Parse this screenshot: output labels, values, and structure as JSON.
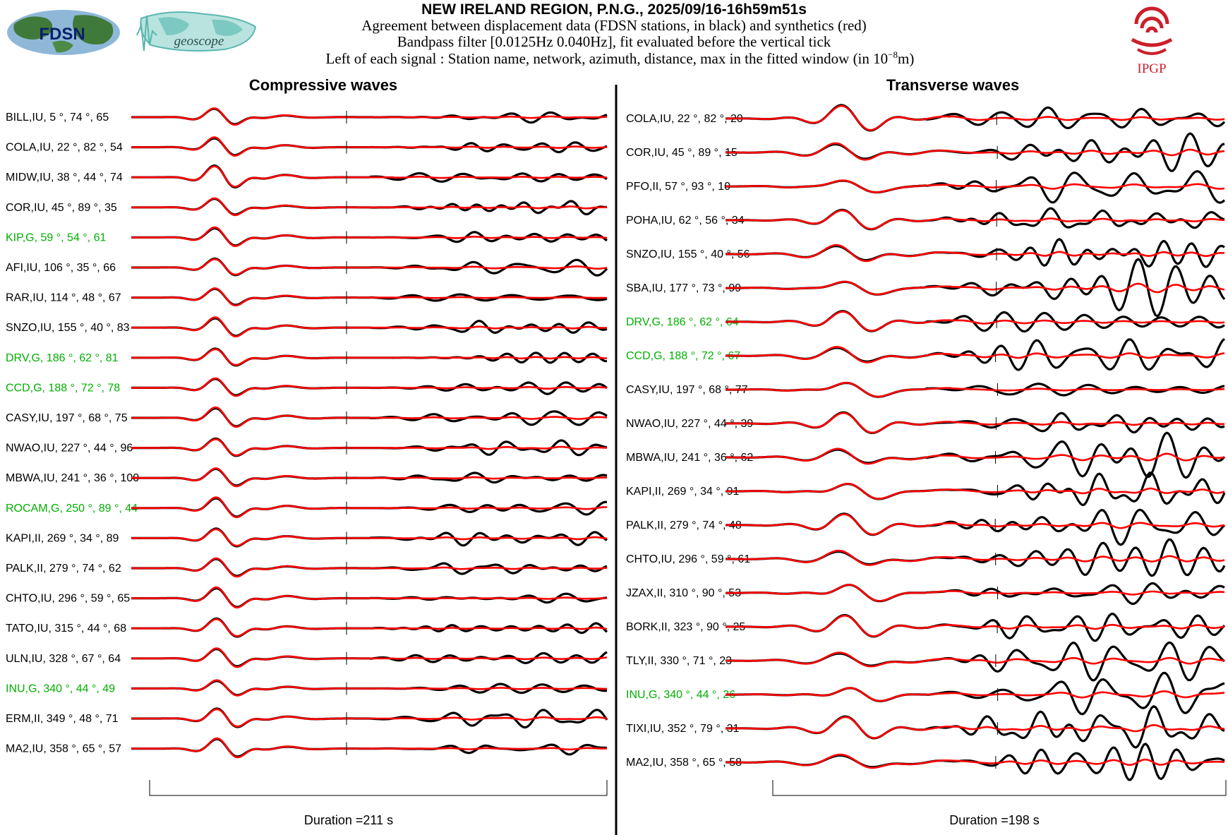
{
  "header": {
    "title": "NEW IRELAND REGION, P.N.G., 2025/09/16-16h59m51s",
    "line1": "Agreement between displacement data (FDSN stations, in black) and synthetics (red)",
    "line2": "Bandpass filter [0.0125Hz 0.040Hz], fit evaluated before the vertical tick",
    "line3_prefix": "Left of each signal : Station name, network, azimuth, distance, max in the fitted window (in 10",
    "line3_exp": "−8",
    "line3_suffix": "m)"
  },
  "logos": {
    "fdsn": "FDSN",
    "geoscope": "geoscope",
    "ipgp": "IPGP"
  },
  "colors": {
    "data": "#000000",
    "synthetic": "#ff0000",
    "geoscope_label": "#00b000",
    "ipgp_red": "#cc1f2a",
    "geo_teal": "#5ab7b0"
  },
  "chart_data": [
    {
      "type": "line",
      "title": "Compressive waves",
      "duration_label": "Duration =211 s",
      "series": [
        "data",
        "synthetics"
      ],
      "stations": [
        {
          "name": "BILL",
          "net": "IU",
          "az": "5",
          "dist": "74",
          "max": "65",
          "geoscope": false
        },
        {
          "name": "COLA",
          "net": "IU",
          "az": "22",
          "dist": "82",
          "max": "54",
          "geoscope": false
        },
        {
          "name": "MIDW",
          "net": "IU",
          "az": "38",
          "dist": "44",
          "max": "74",
          "geoscope": false
        },
        {
          "name": "COR",
          "net": "IU",
          "az": "45",
          "dist": "89",
          "max": "35",
          "geoscope": false
        },
        {
          "name": "KIP",
          "net": "G",
          "az": "59",
          "dist": "54",
          "max": "61",
          "geoscope": true
        },
        {
          "name": "AFI",
          "net": "IU",
          "az": "106",
          "dist": "35",
          "max": "66",
          "geoscope": false
        },
        {
          "name": "RAR",
          "net": "IU",
          "az": "114",
          "dist": "48",
          "max": "67",
          "geoscope": false
        },
        {
          "name": "SNZO",
          "net": "IU",
          "az": "155",
          "dist": "40",
          "max": "83",
          "geoscope": false
        },
        {
          "name": "DRV",
          "net": "G",
          "az": "186",
          "dist": "62",
          "max": "81",
          "geoscope": true
        },
        {
          "name": "CCD",
          "net": "G",
          "az": "188",
          "dist": "72",
          "max": "78",
          "geoscope": true
        },
        {
          "name": "CASY",
          "net": "IU",
          "az": "197",
          "dist": "68",
          "max": "75",
          "geoscope": false
        },
        {
          "name": "NWAO",
          "net": "IU",
          "az": "227",
          "dist": "44",
          "max": "96",
          "geoscope": false
        },
        {
          "name": "MBWA",
          "net": "IU",
          "az": "241",
          "dist": "36",
          "max": "100",
          "geoscope": false
        },
        {
          "name": "ROCAM",
          "net": "G",
          "az": "250",
          "dist": "89",
          "max": "44",
          "geoscope": true
        },
        {
          "name": "KAPI",
          "net": "II",
          "az": "269",
          "dist": "34",
          "max": "89",
          "geoscope": false
        },
        {
          "name": "PALK",
          "net": "II",
          "az": "279",
          "dist": "74",
          "max": "62",
          "geoscope": false
        },
        {
          "name": "CHTO",
          "net": "IU",
          "az": "296",
          "dist": "59",
          "max": "65",
          "geoscope": false
        },
        {
          "name": "TATO",
          "net": "IU",
          "az": "315",
          "dist": "44",
          "max": "68",
          "geoscope": false
        },
        {
          "name": "ULN",
          "net": "IU",
          "az": "328",
          "dist": "67",
          "max": "64",
          "geoscope": false
        },
        {
          "name": "INU",
          "net": "G",
          "az": "340",
          "dist": "44",
          "max": "49",
          "geoscope": true
        },
        {
          "name": "ERM",
          "net": "II",
          "az": "349",
          "dist": "48",
          "max": "71",
          "geoscope": false
        },
        {
          "name": "MA2",
          "net": "IU",
          "az": "358",
          "dist": "65",
          "max": "57",
          "geoscope": false
        }
      ]
    },
    {
      "type": "line",
      "title": "Transverse waves",
      "duration_label": "Duration =198 s",
      "series": [
        "data",
        "synthetics"
      ],
      "stations": [
        {
          "name": "COLA",
          "net": "IU",
          "az": "22",
          "dist": "82",
          "max": "20",
          "geoscope": false
        },
        {
          "name": "COR",
          "net": "IU",
          "az": "45",
          "dist": "89",
          "max": "15",
          "geoscope": false
        },
        {
          "name": "PFO",
          "net": "II",
          "az": "57",
          "dist": "93",
          "max": "10",
          "geoscope": false
        },
        {
          "name": "POHA",
          "net": "IU",
          "az": "62",
          "dist": "56",
          "max": "34",
          "geoscope": false
        },
        {
          "name": "SNZO",
          "net": "IU",
          "az": "155",
          "dist": "40",
          "max": "56",
          "geoscope": false
        },
        {
          "name": "SBA",
          "net": "IU",
          "az": "177",
          "dist": "73",
          "max": "99",
          "geoscope": false
        },
        {
          "name": "DRV",
          "net": "G",
          "az": "186",
          "dist": "62",
          "max": "64",
          "geoscope": true
        },
        {
          "name": "CCD",
          "net": "G",
          "az": "188",
          "dist": "72",
          "max": "67",
          "geoscope": true
        },
        {
          "name": "CASY",
          "net": "IU",
          "az": "197",
          "dist": "68",
          "max": "77",
          "geoscope": false
        },
        {
          "name": "NWAO",
          "net": "IU",
          "az": "227",
          "dist": "44",
          "max": "39",
          "geoscope": false
        },
        {
          "name": "MBWA",
          "net": "IU",
          "az": "241",
          "dist": "36",
          "max": "62",
          "geoscope": false
        },
        {
          "name": "KAPI",
          "net": "II",
          "az": "269",
          "dist": "34",
          "max": "91",
          "geoscope": false
        },
        {
          "name": "PALK",
          "net": "II",
          "az": "279",
          "dist": "74",
          "max": "48",
          "geoscope": false
        },
        {
          "name": "CHTO",
          "net": "IU",
          "az": "296",
          "dist": "59",
          "max": "61",
          "geoscope": false
        },
        {
          "name": "JZAX",
          "net": "II",
          "az": "310",
          "dist": "90",
          "max": "53",
          "geoscope": false
        },
        {
          "name": "BORK",
          "net": "II",
          "az": "323",
          "dist": "90",
          "max": "25",
          "geoscope": false
        },
        {
          "name": "TLY",
          "net": "II",
          "az": "330",
          "dist": "71",
          "max": "23",
          "geoscope": false
        },
        {
          "name": "INU",
          "net": "G",
          "az": "340",
          "dist": "44",
          "max": "26",
          "geoscope": true
        },
        {
          "name": "TIXI",
          "net": "IU",
          "az": "352",
          "dist": "79",
          "max": "31",
          "geoscope": false
        },
        {
          "name": "MA2",
          "net": "IU",
          "az": "358",
          "dist": "65",
          "max": "58",
          "geoscope": false
        }
      ]
    }
  ]
}
